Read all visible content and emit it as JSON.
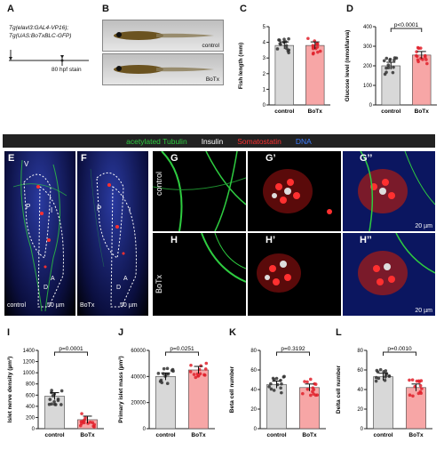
{
  "panels": {
    "A": {
      "label": "A",
      "line1": "Tg(elavl3:GAL4-VP16);",
      "line2": "Tg(UAS:BoTxBLC-GFP)",
      "stain": "80 hpf stain"
    },
    "B": {
      "label": "B",
      "control": "control",
      "botx": "BoTx"
    },
    "C": {
      "label": "C"
    },
    "D": {
      "label": "D"
    },
    "E": {
      "label": "E",
      "v": "V",
      "p": "P",
      "i": "I",
      "condition": "control",
      "scale": "50 µm",
      "a": "A",
      "d": "D"
    },
    "F": {
      "label": "F",
      "p": "P",
      "i": "I",
      "condition": "BoTx",
      "scale": "50 µm",
      "a": "A",
      "d": "D"
    },
    "G": {
      "label": "G",
      "label2": "G’",
      "label3": "G’’",
      "row": "control",
      "scale": "20 µm"
    },
    "H": {
      "label": "H",
      "label2": "H’",
      "label3": "H’’",
      "row": "BoTx",
      "scale": "20 µm"
    },
    "I": {
      "label": "I"
    },
    "J": {
      "label": "J"
    },
    "K": {
      "label": "K"
    },
    "L": {
      "label": "L"
    }
  },
  "stain_legend": {
    "tubulin": "acetylated Tubulin",
    "insulin": "Insulin",
    "somatostatin": "Somatostatin",
    "dna": "DNA",
    "colors": {
      "tubulin": "#2ecc40",
      "insulin": "#ffffff",
      "somatostatin": "#ff3030",
      "dna": "#3a7bff"
    }
  },
  "colors": {
    "control": "#d8d8d8",
    "botx": "#f7a6a6",
    "control_dot": "#333333",
    "botx_dot": "#e0202a"
  },
  "chart_data": [
    {
      "id": "C",
      "type": "bar",
      "categories": [
        "control",
        "BoTx"
      ],
      "values": [
        3.8,
        3.8
      ],
      "ylabel": "Fish length (mm)",
      "ylim": [
        0,
        5
      ],
      "yticks": [
        0,
        1,
        2,
        3,
        4,
        5
      ]
    },
    {
      "id": "D",
      "type": "bar",
      "categories": [
        "control",
        "BoTx"
      ],
      "values": [
        200,
        255
      ],
      "ylabel": "Glucose level (nmol/larva)",
      "ylim": [
        0,
        400
      ],
      "yticks": [
        0,
        100,
        200,
        300,
        400
      ],
      "annotation": "p<0.0001"
    },
    {
      "id": "I",
      "type": "bar",
      "categories": [
        "control",
        "BoTx"
      ],
      "values": [
        580,
        160
      ],
      "ylabel": "Islet nerve density (µm³)",
      "ylim": [
        0,
        1400
      ],
      "yticks": [
        0,
        200,
        400,
        600,
        800,
        1000,
        1200,
        1400
      ],
      "annotation": "p=0.0001"
    },
    {
      "id": "J",
      "type": "bar",
      "categories": [
        "control",
        "BoTx"
      ],
      "values": [
        40000,
        45000
      ],
      "ylabel": "Primary islet mass (µm³)",
      "ylim": [
        0,
        60000
      ],
      "yticks": [
        0,
        20000,
        40000,
        60000
      ],
      "annotation": "p=0.0251"
    },
    {
      "id": "K",
      "type": "bar",
      "categories": [
        "control",
        "BoTx"
      ],
      "values": [
        45,
        42
      ],
      "ylabel": "Beta cell number",
      "ylim": [
        0,
        80
      ],
      "yticks": [
        0,
        20,
        40,
        60,
        80
      ],
      "annotation": "p=0.3192"
    },
    {
      "id": "L",
      "type": "bar",
      "categories": [
        "control",
        "BoTx"
      ],
      "values": [
        53,
        42
      ],
      "ylabel": "Delta cell number",
      "ylim": [
        0,
        80
      ],
      "yticks": [
        0,
        20,
        40,
        60,
        80
      ],
      "annotation": "p=0.0010"
    }
  ]
}
